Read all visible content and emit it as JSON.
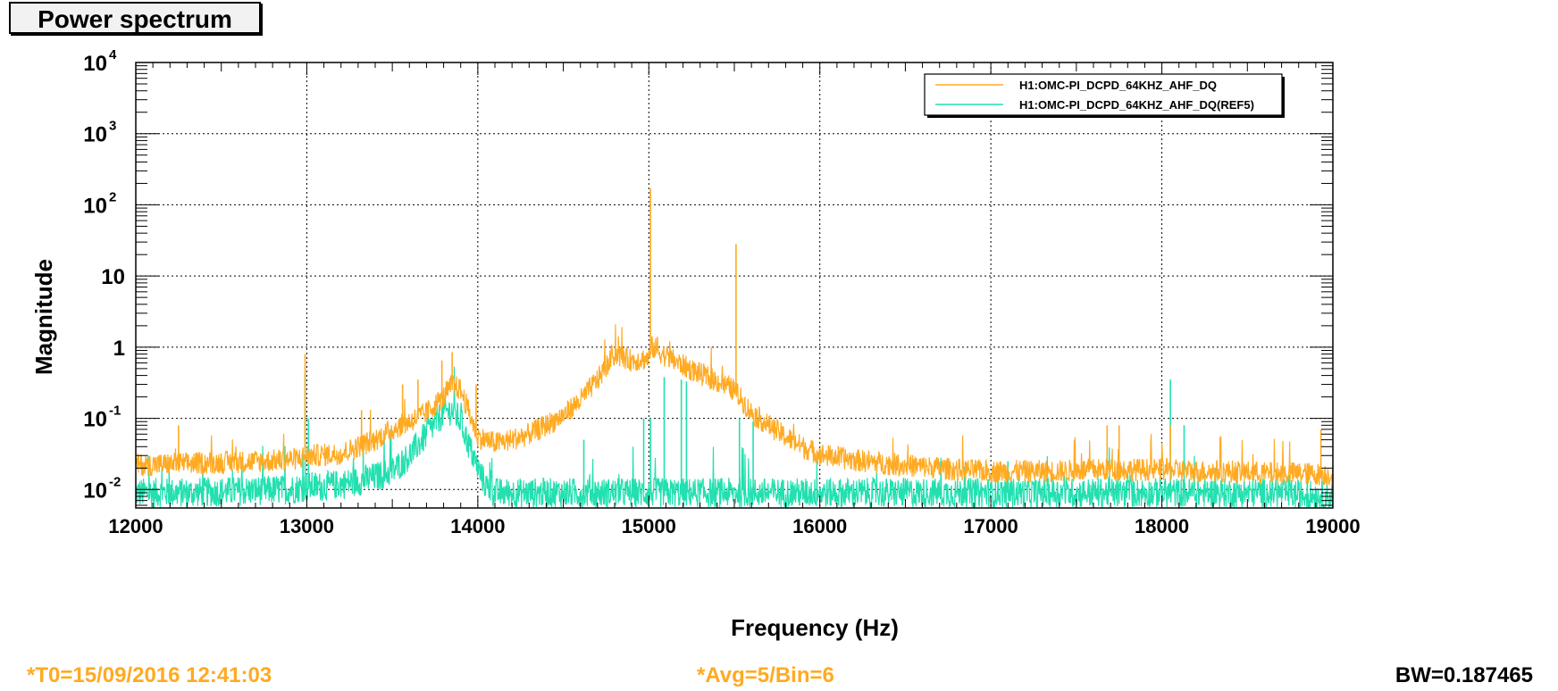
{
  "title": "Power spectrum",
  "footer": {
    "t0": "*T0=15/09/2016 12:41:03",
    "avg": "*Avg=5/Bin=6",
    "bw": "BW=0.187465",
    "accent": "#ffaa22"
  },
  "chart_data": {
    "type": "line",
    "xlabel": "Frequency (Hz)",
    "ylabel": "Magnitude",
    "xlim": [
      12000,
      19000
    ],
    "ylim": [
      0.0055,
      10000
    ],
    "yscale": "log",
    "grid": true,
    "legend_position": "top-right",
    "x_ticks": [
      12000,
      13000,
      14000,
      15000,
      16000,
      17000,
      18000,
      19000
    ],
    "x_tick_labels": [
      "12000",
      "13000",
      "14000",
      "15000",
      "16000",
      "17000",
      "18000",
      "19000"
    ],
    "y_ticks": [
      {
        "value": 10000,
        "base": "10",
        "exp": "4"
      },
      {
        "value": 1000,
        "base": "10",
        "exp": "3"
      },
      {
        "value": 100,
        "base": "10",
        "exp": "2"
      },
      {
        "value": 10,
        "base": "10",
        "exp": ""
      },
      {
        "value": 1,
        "base": "1",
        "exp": ""
      },
      {
        "value": 0.1,
        "base": "10",
        "exp": "-1"
      },
      {
        "value": 0.01,
        "base": "10",
        "exp": "-2"
      }
    ],
    "series": [
      {
        "name": "H1:OMC-PI_DCPD_64KHZ_AHF_DQ",
        "color": "#ffaa22",
        "x": [
          12000,
          12250,
          12500,
          12750,
          12950,
          13000,
          13050,
          13200,
          13300,
          13400,
          13500,
          13600,
          13700,
          13800,
          13850,
          13900,
          13950,
          14000,
          14100,
          14200,
          14300,
          14400,
          14500,
          14600,
          14700,
          14800,
          14900,
          15000,
          15020,
          15050,
          15100,
          15200,
          15300,
          15400,
          15500,
          15600,
          15700,
          15800,
          15900,
          16000,
          16200,
          16400,
          16600,
          16800,
          17000,
          17200,
          17400,
          17600,
          17800,
          18000,
          18200,
          18400,
          18600,
          18800,
          19000
        ],
        "y": [
          0.022,
          0.023,
          0.024,
          0.025,
          0.027,
          0.03,
          0.03,
          0.032,
          0.04,
          0.05,
          0.07,
          0.09,
          0.12,
          0.2,
          0.3,
          0.25,
          0.12,
          0.055,
          0.045,
          0.05,
          0.06,
          0.08,
          0.11,
          0.18,
          0.35,
          0.8,
          0.65,
          0.7,
          1.0,
          0.9,
          0.75,
          0.55,
          0.42,
          0.33,
          0.25,
          0.12,
          0.08,
          0.055,
          0.04,
          0.031,
          0.026,
          0.023,
          0.021,
          0.019,
          0.018,
          0.018,
          0.018,
          0.019,
          0.019,
          0.019,
          0.018,
          0.018,
          0.017,
          0.017,
          0.016
        ],
        "peaks": [
          [
            12250,
            0.08
          ],
          [
            12990,
            0.8
          ],
          [
            13320,
            0.13
          ],
          [
            13560,
            0.3
          ],
          [
            13650,
            0.35
          ],
          [
            13790,
            0.65
          ],
          [
            13850,
            0.85
          ],
          [
            13990,
            0.3
          ],
          [
            15010,
            170
          ],
          [
            15050,
            1.4
          ],
          [
            15210,
            0.65
          ],
          [
            15510,
            28
          ],
          [
            17680,
            0.08
          ],
          [
            17750,
            0.08
          ],
          [
            18050,
            0.08
          ],
          [
            18930,
            0.07
          ]
        ]
      },
      {
        "name": "H1:OMC-PI_DCPD_64KHZ_AHF_DQ(REF5)",
        "color": "#22e0b0",
        "x": [
          12000,
          12300,
          12600,
          12900,
          13000,
          13100,
          13200,
          13300,
          13400,
          13500,
          13600,
          13700,
          13800,
          13850,
          13900,
          13950,
          14000,
          14050,
          14100,
          14300,
          14500,
          14700,
          14900,
          15100,
          15300,
          15500,
          15700,
          15900,
          16200,
          16600,
          17000,
          17400,
          17800,
          18200,
          18600,
          19000
        ],
        "y": [
          0.009,
          0.009,
          0.0095,
          0.01,
          0.011,
          0.011,
          0.012,
          0.013,
          0.015,
          0.018,
          0.03,
          0.06,
          0.12,
          0.13,
          0.09,
          0.04,
          0.02,
          0.011,
          0.009,
          0.009,
          0.009,
          0.009,
          0.009,
          0.009,
          0.009,
          0.009,
          0.009,
          0.009,
          0.009,
          0.009,
          0.009,
          0.009,
          0.009,
          0.009,
          0.009,
          0.008
        ],
        "peaks": [
          [
            12990,
            0.42
          ],
          [
            13010,
            0.1
          ],
          [
            13330,
            0.05
          ],
          [
            13800,
            0.2
          ],
          [
            14620,
            0.05
          ],
          [
            14970,
            0.1
          ],
          [
            15010,
            0.1
          ],
          [
            15090,
            0.38
          ],
          [
            15190,
            0.35
          ],
          [
            15220,
            0.33
          ],
          [
            15530,
            0.1
          ],
          [
            15610,
            0.09
          ],
          [
            17100,
            0.025
          ],
          [
            18050,
            0.35
          ],
          [
            18130,
            0.08
          ]
        ]
      }
    ]
  }
}
